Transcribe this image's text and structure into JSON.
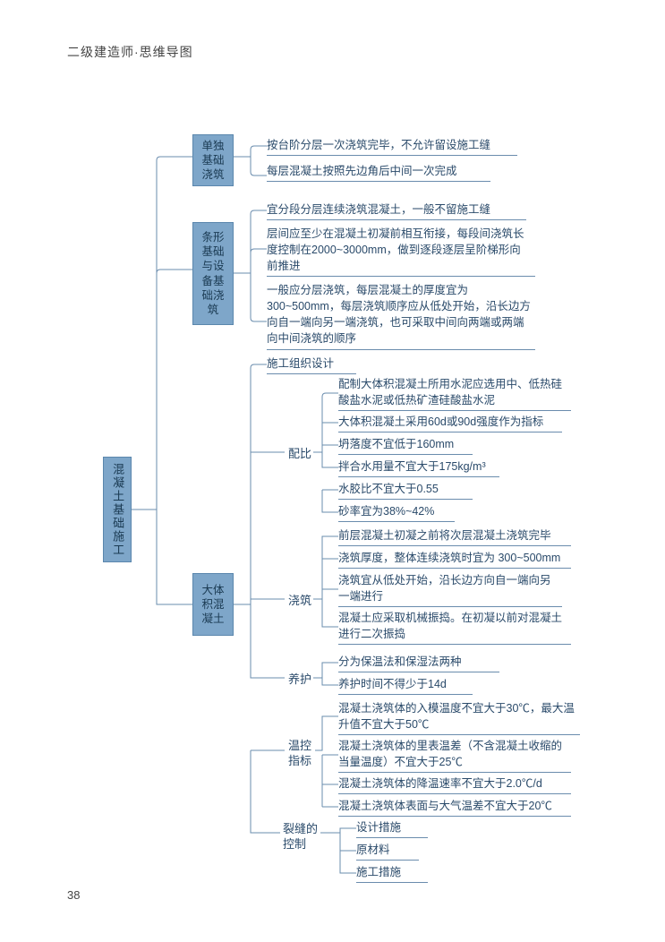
{
  "page": {
    "header": "二级建造师·思维导图",
    "number": "38"
  },
  "colors": {
    "box_fill": "#7ea6c9",
    "box_border": "#5b87ad",
    "line": "#6a8cad",
    "text": "#2a4a6a",
    "bg": "#ffffff"
  },
  "root": {
    "label": "混凝土基础施工"
  },
  "branches": [
    {
      "id": "b1",
      "label": "单独\n基础\n浇筑",
      "leaves": [
        "按台阶分层一次浇筑完毕，不允许留设施工缝",
        "每层混凝土按照先边角后中间一次完成"
      ]
    },
    {
      "id": "b2",
      "label": "条形\n基础\n与设\n备基\n础浇\n筑",
      "leaves": [
        "宜分段分层连续浇筑混凝土，一般不留施工缝",
        "层间应至少在混凝土初凝前相互衔接，每段间浇筑长度控制在2000~3000mm，做到逐段逐层呈阶梯形向前推进",
        "一般应分层浇筑，每层混凝土的厚度宜为300~500mm，每层浇筑顺序应从低处开始，沿长边方向自一端向另一端浇筑，也可采取中间向两端或两端向中间浇筑的顺序"
      ]
    },
    {
      "id": "b3",
      "label": "大体\n积混\n凝土",
      "top_leaf": "施工组织设计",
      "groups": [
        {
          "label": "配比",
          "leaves": [
            "配制大体积混凝土所用水泥应选用中、低热硅酸盐水泥或低热矿渣硅酸盐水泥",
            "大体积混凝土采用60d或90d强度作为指标",
            "坍落度不宜低于160mm",
            "拌合水用量不宜大于175kg/m³",
            "水胶比不宜大于0.55",
            "砂率宜为38%~42%"
          ]
        },
        {
          "label": "浇筑",
          "leaves": [
            "前层混凝土初凝之前将次层混凝土浇筑完毕",
            "浇筑厚度，整体连续浇筑时宜为 300~500mm",
            "浇筑宜从低处开始，沿长边方向自一端向另一端进行",
            "混凝土应采取机械振捣。在初凝以前对混凝土进行二次振捣"
          ]
        },
        {
          "label": "养护",
          "leaves": [
            "分为保温法和保湿法两种",
            "养护时间不得少于14d"
          ]
        },
        {
          "label": "温控\n指标",
          "leaves": [
            "混凝土浇筑体的入模温度不宜大于30℃，最大温升值不宜大于50℃",
            "混凝土浇筑体的里表温差（不含混凝土收缩的当量温度）不宜大于25℃",
            "混凝土浇筑体的降温速率不宜大于2.0℃/d",
            "混凝土浇筑体表面与大气温差不宜大于20℃"
          ]
        },
        {
          "label": "裂缝的\n控制",
          "leaves": [
            "设计措施",
            "原材料",
            "施工措施"
          ]
        }
      ]
    }
  ]
}
